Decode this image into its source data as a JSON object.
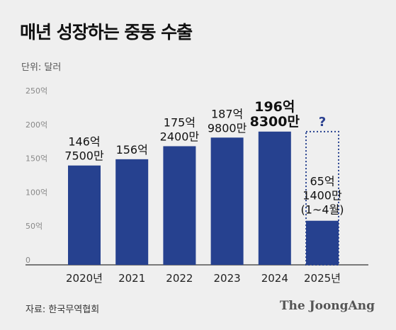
{
  "header": {
    "title": "매년 성장하는 중동 수출",
    "unit": "단위: 달러"
  },
  "footer": {
    "source": "자료: 한국무역협회",
    "brand": "The JoongAng"
  },
  "colors": {
    "bar": "#26418f",
    "partial_outline": "#26418f",
    "axis": "#333333",
    "background": "#efefef"
  },
  "chart_data": {
    "type": "bar",
    "title": "매년 성장하는 중동 수출",
    "ylabel": "단위: 달러",
    "ylim": [
      0,
      250
    ],
    "yticks": [
      "0",
      "50억",
      "100억",
      "150억",
      "200억",
      "250억"
    ],
    "ytick_values": [
      0,
      50,
      100,
      150,
      200,
      250
    ],
    "categories": [
      "2020년",
      "2021",
      "2022",
      "2023",
      "2024",
      "2025년"
    ],
    "values": [
      146.75,
      156,
      175.24,
      187.98,
      196.83,
      65.14
    ],
    "value_labels": [
      [
        "146억",
        "7500만"
      ],
      [
        "156억"
      ],
      [
        "175억",
        "2400만"
      ],
      [
        "187억",
        "9800만"
      ],
      [
        "196억",
        "8300만"
      ],
      [
        "65억",
        "1400만",
        "(1~4월)"
      ]
    ],
    "highlight_index": 4,
    "projected": {
      "index": 5,
      "outline_value": 196.83,
      "label": "?"
    },
    "grid": false
  }
}
